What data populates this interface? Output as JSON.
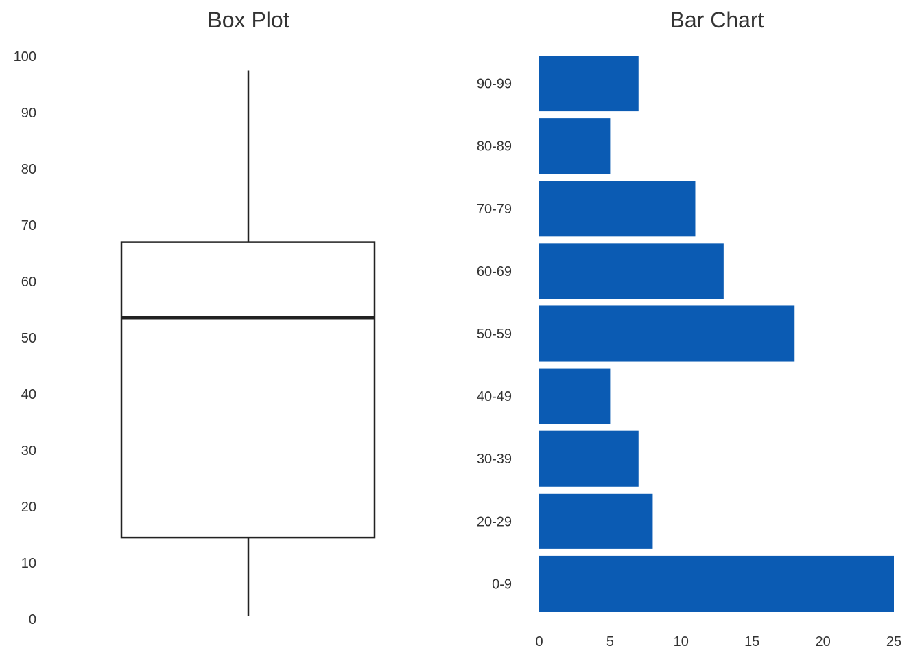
{
  "chart_data": [
    {
      "type": "box",
      "title": "Box Plot",
      "ylim": [
        0,
        100
      ],
      "y_ticks": [
        "0",
        "10",
        "20",
        "30",
        "40",
        "50",
        "60",
        "70",
        "80",
        "90",
        "100"
      ],
      "stats": {
        "min": 0.5,
        "q1": 14.5,
        "median": 53.5,
        "q3": 67,
        "max": 97.5
      },
      "grid": false,
      "color": "#222222"
    },
    {
      "type": "bar",
      "orientation": "horizontal",
      "title": "Bar Chart",
      "categories": [
        "0-9",
        "20-29",
        "30-39",
        "40-49",
        "50-59",
        "60-69",
        "70-79",
        "80-89",
        "90-99"
      ],
      "values": [
        25,
        8,
        7,
        5,
        18,
        13,
        11,
        5,
        7
      ],
      "xlim": [
        0,
        25
      ],
      "x_ticks": [
        "0",
        "5",
        "10",
        "15",
        "20",
        "25"
      ],
      "grid": false,
      "color": "#0b5bb3"
    }
  ]
}
